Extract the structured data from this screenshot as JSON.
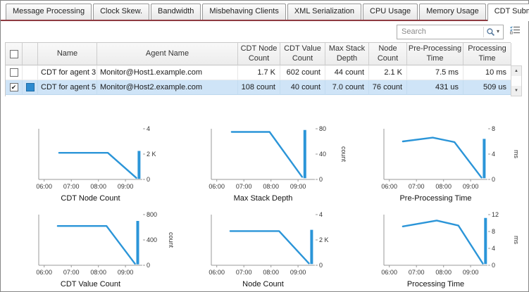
{
  "colors": {
    "accent": "#8e3b41",
    "selection": "#cfe4f7",
    "chart_line": "#2b95d8",
    "swatch": "#2e8bd0"
  },
  "icons": {
    "search": "magnifier",
    "search_dropdown": "▾",
    "column_customization": "list-with-checks",
    "scroll_up": "▲",
    "scroll_down": "▼",
    "checkbox_check": "✔"
  },
  "tabs": {
    "items": [
      {
        "label": "Message Processing",
        "active": false
      },
      {
        "label": "Clock Skew.",
        "active": false
      },
      {
        "label": "Bandwidth",
        "active": false
      },
      {
        "label": "Misbehaving Clients",
        "active": false
      },
      {
        "label": "XML Serialization",
        "active": false
      },
      {
        "label": "CPU Usage",
        "active": false
      },
      {
        "label": "Memory Usage",
        "active": false
      },
      {
        "label": "CDT Submission",
        "active": true
      }
    ]
  },
  "search": {
    "placeholder": "Search"
  },
  "table": {
    "columns": [
      "Name",
      "Agent Name",
      "CDT Node Count",
      "CDT Value Count",
      "Max Stack Depth",
      "Node Count",
      "Pre-Processing Time",
      "Processing Time"
    ],
    "rows": [
      {
        "checked": false,
        "selected": false,
        "has_swatch": false,
        "name": "CDT for agent 3",
        "agent": "Monitor@Host1.example.com",
        "values": [
          "1.7 K",
          "602 count",
          "44 count",
          "2.1 K",
          "7.5 ms",
          "10 ms"
        ]
      },
      {
        "checked": true,
        "selected": true,
        "has_swatch": true,
        "name": "CDT for agent 5",
        "agent": "Monitor@Host2.example.com",
        "values": [
          "108 count",
          "40 count",
          "7.0 count",
          "76 count",
          "431 us",
          "509 us"
        ]
      }
    ]
  },
  "chart_data": {
    "type": "line",
    "x_axis": {
      "min": 5.8,
      "max": 9.62,
      "ticks": [
        6,
        7,
        8,
        9
      ],
      "tick_labels": [
        "06:00",
        "07:00",
        "08:00",
        "09:00"
      ]
    },
    "legend": "none",
    "charts": [
      {
        "title": "CDT Node Count",
        "unit": "",
        "ymax": 4,
        "yticks": [
          {
            "v": 4,
            "l": "4"
          },
          {
            "v": 2,
            "l": "2 K"
          },
          {
            "v": 0,
            "l": "0"
          }
        ],
        "line": [
          [
            6.55,
            2.1
          ],
          [
            8.35,
            2.1
          ],
          [
            9.4,
            0.12
          ]
        ],
        "spike": [
          9.5,
          0.05,
          2.25
        ]
      },
      {
        "title": "Max Stack Depth",
        "unit": "count",
        "ymax": 80,
        "yticks": [
          {
            "v": 80,
            "l": "80"
          },
          {
            "v": 40,
            "l": "40"
          },
          {
            "v": 0,
            "l": "0"
          }
        ],
        "line": [
          [
            6.55,
            75
          ],
          [
            7.95,
            75
          ],
          [
            9.15,
            4
          ]
        ],
        "spike": [
          9.25,
          2,
          78
        ]
      },
      {
        "title": "Pre-Processing Time",
        "unit": "ms",
        "ymax": 8,
        "yticks": [
          {
            "v": 8,
            "l": "8"
          },
          {
            "v": 4,
            "l": "4"
          },
          {
            "v": 0,
            "l": "0"
          }
        ],
        "line": [
          [
            6.5,
            6.0
          ],
          [
            7.6,
            6.6
          ],
          [
            8.4,
            5.9
          ],
          [
            9.4,
            0.3
          ]
        ],
        "spike": [
          9.5,
          0.2,
          6.4
        ]
      },
      {
        "title": "CDT Value Count",
        "unit": "count",
        "ymax": 800,
        "yticks": [
          {
            "v": 800,
            "l": "800"
          },
          {
            "v": 400,
            "l": "400"
          },
          {
            "v": 0,
            "l": "0"
          }
        ],
        "line": [
          [
            6.5,
            620
          ],
          [
            8.3,
            620
          ],
          [
            9.35,
            25
          ]
        ],
        "spike": [
          9.45,
          15,
          700
        ]
      },
      {
        "title": "Node Count",
        "unit": "",
        "ymax": 4,
        "yticks": [
          {
            "v": 4,
            "l": "4"
          },
          {
            "v": 2,
            "l": "2 K"
          },
          {
            "v": 0,
            "l": "0"
          }
        ],
        "line": [
          [
            6.5,
            2.7
          ],
          [
            8.3,
            2.7
          ],
          [
            9.4,
            0.15
          ]
        ],
        "spike": [
          9.5,
          0.1,
          2.8
        ]
      },
      {
        "title": "Processing Time",
        "unit": "ms",
        "ymax": 12,
        "yticks": [
          {
            "v": 12,
            "l": "12"
          },
          {
            "v": 8,
            "l": "8"
          },
          {
            "v": 4,
            "l": "4"
          },
          {
            "v": 0,
            "l": "0"
          }
        ],
        "line": [
          [
            6.5,
            9.2
          ],
          [
            7.75,
            10.6
          ],
          [
            8.55,
            9.4
          ],
          [
            9.45,
            0.4
          ]
        ],
        "spike": [
          9.55,
          0.3,
          11.2
        ]
      }
    ]
  }
}
